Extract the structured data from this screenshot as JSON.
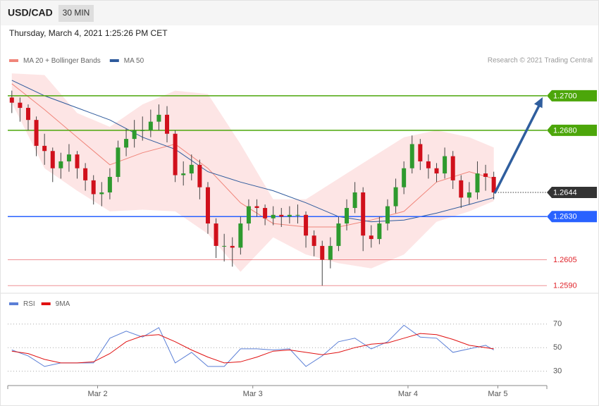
{
  "header": {
    "symbol": "USD/CAD",
    "interval": "30 MIN",
    "timestamp": "Thursday, March 4, 2021 1:25:26 PM CET"
  },
  "copyright": "Research © 2021 Trading Central",
  "chart_data": [
    {
      "type": "candlestick",
      "up_color": "#2e9a2e",
      "down_color": "#d0101b",
      "xlim": [
        -0.5,
        65.5
      ],
      "ylim": [
        1.2586,
        1.2731
      ],
      "ohlc": [
        [
          1.2699,
          1.2703,
          1.269,
          1.2696
        ],
        [
          1.2696,
          1.2699,
          1.2685,
          1.2693
        ],
        [
          1.2693,
          1.2695,
          1.268,
          1.2686
        ],
        [
          1.2686,
          1.2688,
          1.2665,
          1.2671
        ],
        [
          1.2671,
          1.2678,
          1.266,
          1.2668
        ],
        [
          1.2668,
          1.267,
          1.265,
          1.2658
        ],
        [
          1.2658,
          1.2667,
          1.2652,
          1.2662
        ],
        [
          1.2662,
          1.2672,
          1.2656,
          1.2666
        ],
        [
          1.2666,
          1.2668,
          1.2652,
          1.2658
        ],
        [
          1.2658,
          1.2661,
          1.2645,
          1.2651
        ],
        [
          1.2651,
          1.2654,
          1.2637,
          1.2643
        ],
        [
          1.2643,
          1.265,
          1.2636,
          1.2644
        ],
        [
          1.2644,
          1.2658,
          1.264,
          1.2653
        ],
        [
          1.2653,
          1.2674,
          1.265,
          1.267
        ],
        [
          1.267,
          1.2681,
          1.2665,
          1.2675
        ],
        [
          1.2675,
          1.2686,
          1.267,
          1.268
        ],
        [
          1.268,
          1.2688,
          1.2674,
          1.268
        ],
        [
          1.268,
          1.2692,
          1.2676,
          1.2685
        ],
        [
          1.2685,
          1.2695,
          1.268,
          1.2689
        ],
        [
          1.2689,
          1.2694,
          1.2673,
          1.2678
        ],
        [
          1.2678,
          1.268,
          1.265,
          1.2654
        ],
        [
          1.2654,
          1.2662,
          1.2648,
          1.2655
        ],
        [
          1.2655,
          1.2666,
          1.2651,
          1.266
        ],
        [
          1.266,
          1.2663,
          1.264,
          1.2647
        ],
        [
          1.2647,
          1.265,
          1.262,
          1.2626
        ],
        [
          1.2626,
          1.2629,
          1.2606,
          1.2613
        ],
        [
          1.2613,
          1.262,
          1.2604,
          1.2613
        ],
        [
          1.2613,
          1.2618,
          1.2601,
          1.2612
        ],
        [
          1.2612,
          1.263,
          1.2608,
          1.2626
        ],
        [
          1.2626,
          1.264,
          1.2622,
          1.2636
        ],
        [
          1.2636,
          1.264,
          1.263,
          1.2635
        ],
        [
          1.2635,
          1.2637,
          1.2625,
          1.2629
        ],
        [
          1.2629,
          1.2636,
          1.2625,
          1.2631
        ],
        [
          1.2631,
          1.2635,
          1.2624,
          1.263
        ],
        [
          1.263,
          1.2636,
          1.2626,
          1.2631
        ],
        [
          1.2631,
          1.2637,
          1.2626,
          1.2631
        ],
        [
          1.2631,
          1.2633,
          1.2612,
          1.2619
        ],
        [
          1.2619,
          1.2622,
          1.2607,
          1.2613
        ],
        [
          1.2613,
          1.2616,
          1.259,
          1.2605
        ],
        [
          1.2605,
          1.2618,
          1.26,
          1.2613
        ],
        [
          1.2613,
          1.263,
          1.261,
          1.2626
        ],
        [
          1.2626,
          1.264,
          1.2622,
          1.2635
        ],
        [
          1.2635,
          1.265,
          1.2632,
          1.2644
        ],
        [
          1.2644,
          1.2647,
          1.261,
          1.2619
        ],
        [
          1.2619,
          1.2625,
          1.2612,
          1.2617
        ],
        [
          1.2617,
          1.263,
          1.2614,
          1.2626
        ],
        [
          1.2626,
          1.264,
          1.2622,
          1.2636
        ],
        [
          1.2636,
          1.2652,
          1.2632,
          1.2647
        ],
        [
          1.2647,
          1.2662,
          1.2643,
          1.2658
        ],
        [
          1.2658,
          1.2677,
          1.2655,
          1.2672
        ],
        [
          1.2672,
          1.2675,
          1.2657,
          1.2662
        ],
        [
          1.2662,
          1.2666,
          1.2652,
          1.2658
        ],
        [
          1.2658,
          1.2661,
          1.265,
          1.2655
        ],
        [
          1.2655,
          1.267,
          1.2652,
          1.2665
        ],
        [
          1.2665,
          1.2668,
          1.2646,
          1.2651
        ],
        [
          1.2651,
          1.2654,
          1.2635,
          1.2641
        ],
        [
          1.2641,
          1.265,
          1.2637,
          1.2644
        ],
        [
          1.2644,
          1.2662,
          1.264,
          1.2655
        ],
        [
          1.2655,
          1.266,
          1.2645,
          1.2653
        ],
        [
          1.2653,
          1.2656,
          1.264,
          1.2644
        ]
      ],
      "indicator_x": [
        0,
        4,
        8,
        12,
        16,
        20,
        24,
        28,
        32,
        36,
        40,
        44,
        48,
        52,
        56,
        59
      ],
      "series": [
        {
          "name": "MA 20 + Bollinger Bands",
          "color": "#f0857a",
          "band_color": "#fde2e2",
          "values": [
            1.2707,
            1.2692,
            1.2676,
            1.266,
            1.2667,
            1.2672,
            1.2658,
            1.2638,
            1.2626,
            1.2624,
            1.2624,
            1.2628,
            1.2633,
            1.265,
            1.2656,
            1.2652
          ],
          "upper": [
            1.2713,
            1.2712,
            1.269,
            1.2682,
            1.2695,
            1.2703,
            1.2701,
            1.2672,
            1.264,
            1.264,
            1.2652,
            1.2664,
            1.2676,
            1.268,
            1.2676,
            1.267
          ],
          "lower": [
            1.2696,
            1.2658,
            1.2645,
            1.2633,
            1.2634,
            1.2633,
            1.262,
            1.2598,
            1.2618,
            1.2608,
            1.2603,
            1.26,
            1.2608,
            1.2627,
            1.2633,
            1.2639
          ]
        },
        {
          "name": "MA 50",
          "color": "#2e5a9c",
          "values": [
            1.2709,
            1.27,
            1.2693,
            1.2686,
            1.2676,
            1.2669,
            1.2656,
            1.265,
            1.2645,
            1.2638,
            1.263,
            1.2627,
            1.2628,
            1.2632,
            1.2637,
            1.2641
          ]
        }
      ],
      "levels": [
        {
          "value": 1.27,
          "label": "1.2700",
          "color": "#4ca60a",
          "style": "tag"
        },
        {
          "value": 1.268,
          "label": "1.2680",
          "color": "#4ca60a",
          "style": "tag"
        },
        {
          "value": 1.2644,
          "label": "1.2644",
          "color": "#333333",
          "style": "current"
        },
        {
          "value": 1.263,
          "label": "1.2630",
          "color": "#2962ff",
          "style": "tag"
        },
        {
          "value": 1.2605,
          "label": "1.2605",
          "color": "#e0242b",
          "style": "text"
        },
        {
          "value": 1.259,
          "label": "1.2590",
          "color": "#e0242b",
          "style": "text"
        }
      ],
      "forecast_color": "#2f5e9e"
    },
    {
      "type": "line",
      "xlim": [
        -0.5,
        65.5
      ],
      "ylim": [
        19,
        95
      ],
      "yticks": [
        30,
        50,
        70
      ],
      "xticks": [
        {
          "value": 10.5,
          "label": "Mar 2"
        },
        {
          "value": 29.5,
          "label": "Mar 3"
        },
        {
          "value": 48.5,
          "label": "Mar 4"
        },
        {
          "value": 59.5,
          "label": "Mar 5"
        }
      ],
      "x": [
        0,
        2,
        4,
        6,
        8,
        10,
        12,
        14,
        16,
        18,
        20,
        22,
        24,
        26,
        28,
        30,
        32,
        34,
        36,
        38,
        40,
        42,
        44,
        46,
        48,
        50,
        52,
        54,
        56,
        58,
        59
      ],
      "series": [
        {
          "name": "RSI",
          "color": "#5b7fd6",
          "values": [
            48,
            43,
            34,
            37,
            37,
            37,
            58,
            64,
            59,
            67,
            37,
            46,
            34,
            34,
            49,
            49,
            48,
            49,
            34,
            43,
            55,
            58,
            49,
            55,
            69,
            59,
            58,
            46,
            49,
            52,
            48
          ]
        },
        {
          "name": "9MA",
          "color": "#e01010",
          "values": [
            47,
            45,
            40,
            37,
            37,
            38,
            45,
            55,
            60,
            61,
            55,
            48,
            42,
            37,
            38,
            42,
            47,
            48,
            46,
            44,
            46,
            50,
            53,
            54,
            58,
            62,
            61,
            57,
            52,
            50,
            49
          ]
        }
      ]
    }
  ]
}
